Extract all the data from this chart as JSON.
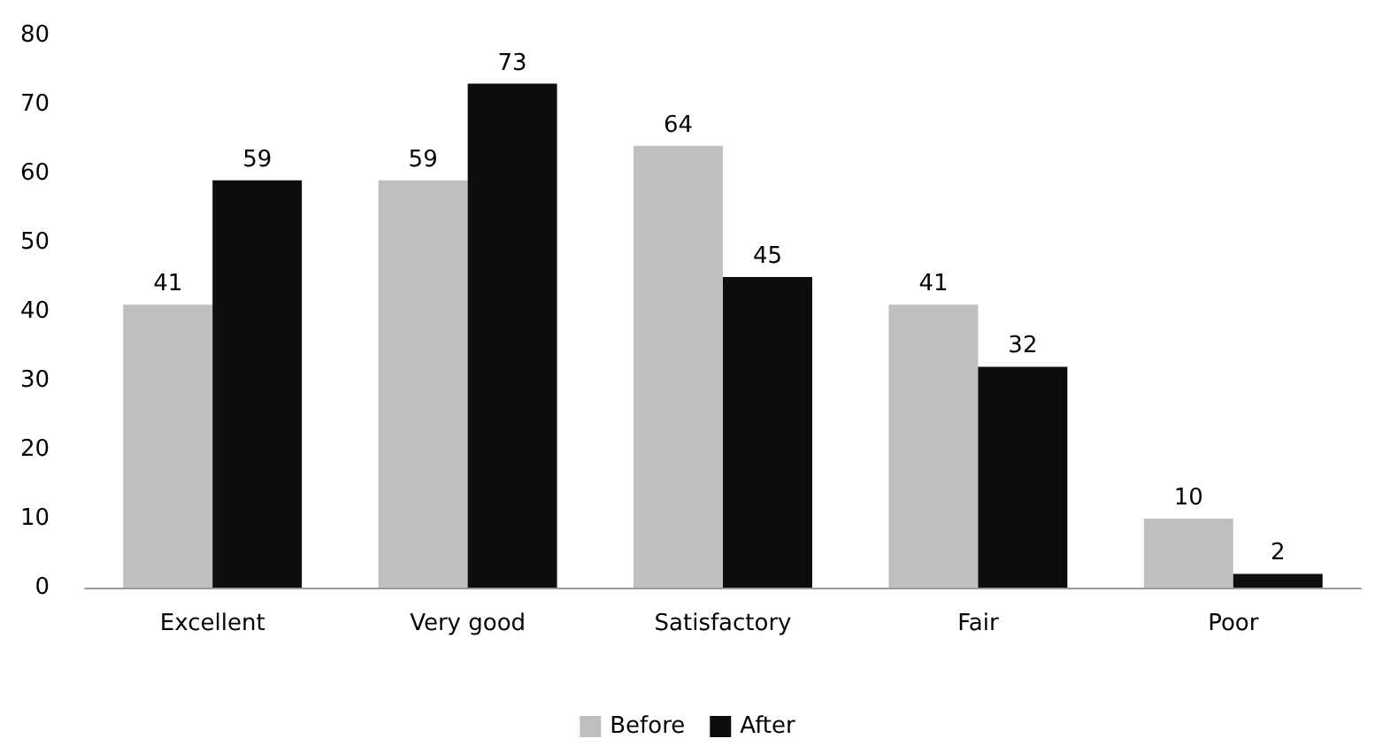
{
  "chart_data": {
    "type": "bar",
    "categories": [
      "Excellent",
      "Very good",
      "Satisfactory",
      "Fair",
      "Poor"
    ],
    "series": [
      {
        "name": "Before",
        "color": "#bfbfbf",
        "values": [
          41,
          59,
          64,
          41,
          10
        ]
      },
      {
        "name": "After",
        "color": "#0d0d0d",
        "values": [
          59,
          73,
          45,
          32,
          2
        ]
      }
    ],
    "ylim": [
      0,
      80
    ],
    "yticks": [
      0,
      10,
      20,
      30,
      40,
      50,
      60,
      70,
      80
    ],
    "grid": false,
    "legend": "bottom",
    "data_labels": true
  }
}
